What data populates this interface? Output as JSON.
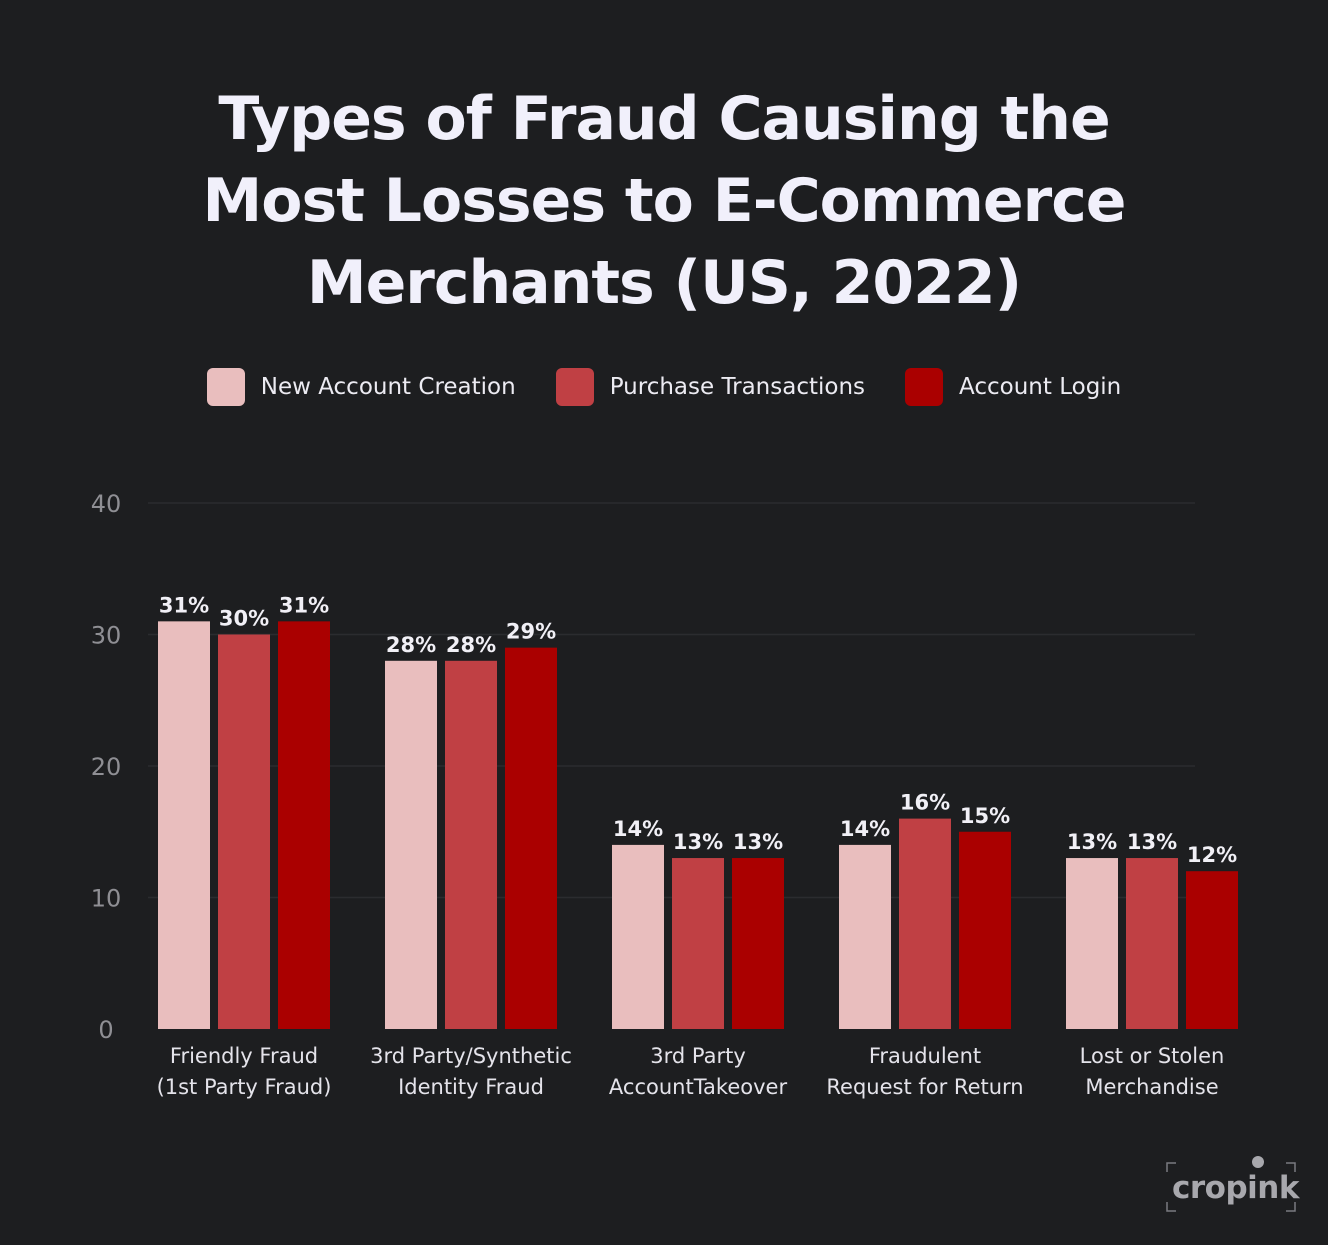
{
  "chart_data": {
    "type": "bar",
    "title": "Types of Fraud Causing the Most Losses to E-Commerce Merchants (US, 2022)",
    "title_lines": [
      "Types of Fraud Causing the",
      "Most Losses to E-Commerce",
      "Merchants (US, 2022)"
    ],
    "categories": [
      [
        "Friendly Fraud",
        "(1st Party Fraud)"
      ],
      [
        "3rd Party/Synthetic",
        "Identity Fraud"
      ],
      [
        "3rd Party",
        "AccountTakeover"
      ],
      [
        "Fraudulent",
        "Request for Return"
      ],
      [
        "Lost or Stolen",
        "Merchandise"
      ]
    ],
    "series": [
      {
        "name": "New Account Creation",
        "color": "#e9bebe",
        "values": [
          31,
          28,
          14,
          14,
          13
        ],
        "labels": [
          "31%",
          "28%",
          "14%",
          "14%",
          "13%"
        ]
      },
      {
        "name": "Purchase Transactions",
        "color": "#c04044",
        "values": [
          30,
          28,
          13,
          16,
          13
        ],
        "labels": [
          "30%",
          "28%",
          "13%",
          "16%",
          "13%"
        ]
      },
      {
        "name": "Account Login",
        "color": "#aa0000",
        "values": [
          31,
          29,
          13,
          15,
          12
        ],
        "labels": [
          "31%",
          "29%",
          "13%",
          "15%",
          "12%"
        ]
      }
    ],
    "yticks": [
      0,
      10,
      20,
      30,
      40
    ],
    "ylim": [
      0,
      40
    ],
    "grid": true,
    "legend_position": "top"
  },
  "watermark": {
    "text": "cropink"
  }
}
